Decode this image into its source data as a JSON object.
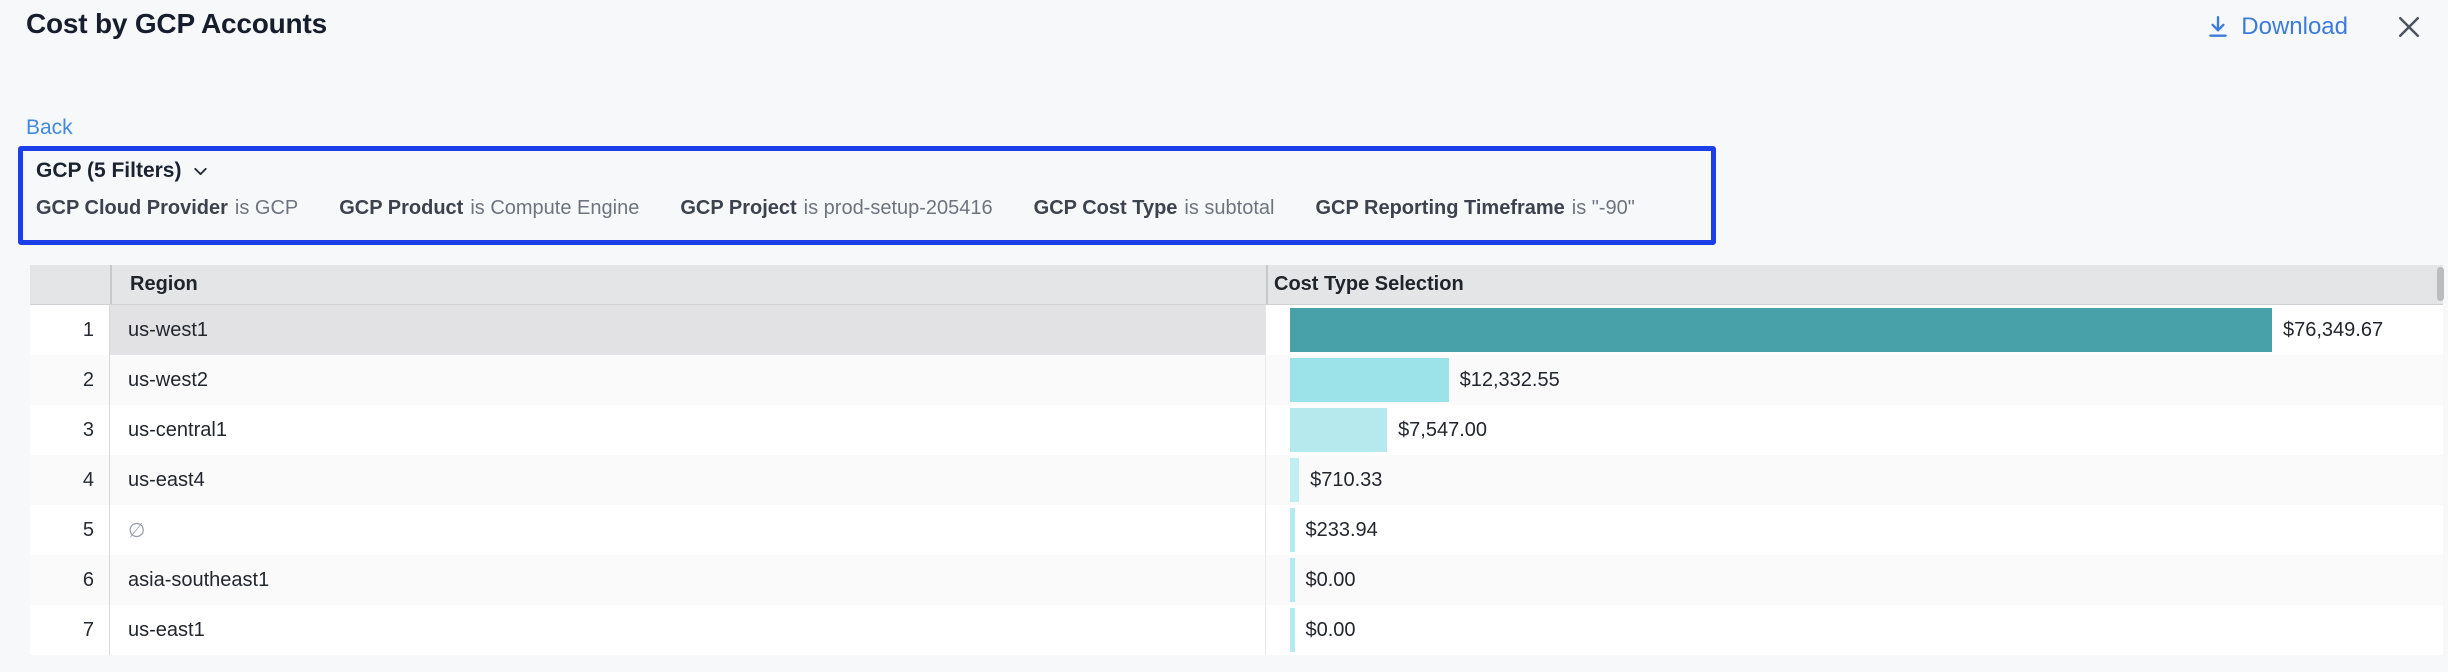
{
  "page": {
    "title": "Cost by GCP Accounts"
  },
  "header": {
    "download_label": "Download"
  },
  "nav": {
    "back_label": "Back"
  },
  "filter_panel": {
    "summary": "GCP (5 Filters)",
    "highlight_color": "#1d3fe8",
    "filters": [
      {
        "name": "GCP Cloud Provider",
        "condition": "is GCP"
      },
      {
        "name": "GCP Product",
        "condition": "is Compute Engine"
      },
      {
        "name": "GCP Project",
        "condition": "is prod-setup-205416"
      },
      {
        "name": "GCP Cost Type",
        "condition": "is subtotal"
      },
      {
        "name": "GCP Reporting Timeframe",
        "condition": "is \"-90\""
      }
    ]
  },
  "table": {
    "columns": {
      "region": "Region",
      "cost": "Cost Type Selection"
    },
    "rows": [
      {
        "index": "1",
        "region": "us-west1",
        "value": 76349.67,
        "label": "$76,349.67",
        "bar_color": "#48a1a9",
        "selected": true
      },
      {
        "index": "2",
        "region": "us-west2",
        "value": 12332.55,
        "label": "$12,332.55",
        "bar_color": "#9be2e9"
      },
      {
        "index": "3",
        "region": "us-central1",
        "value": 7547.0,
        "label": "$7,547.00",
        "bar_color": "#b5e9ee"
      },
      {
        "index": "4",
        "region": "us-east4",
        "value": 710.33,
        "label": "$710.33",
        "bar_color": "#c0eef2"
      },
      {
        "index": "5",
        "region": "∅",
        "region_null": true,
        "value": 233.94,
        "label": "$233.94",
        "bar_color": "#b4ebf3"
      },
      {
        "index": "6",
        "region": "asia-southeast1",
        "value": 0.0,
        "label": "$0.00",
        "bar_color": "#b4ebf3"
      },
      {
        "index": "7",
        "region": "us-east1",
        "value": 0.0,
        "label": "$0.00",
        "bar_color": "#b4ebf3"
      }
    ]
  },
  "chart_data": {
    "type": "bar",
    "orientation": "horizontal",
    "title": "Cost by GCP Accounts",
    "categories": [
      "us-west1",
      "us-west2",
      "us-central1",
      "us-east4",
      "∅",
      "asia-southeast1",
      "us-east1"
    ],
    "values": [
      76349.67,
      12332.55,
      7547.0,
      710.33,
      233.94,
      0.0,
      0.0
    ],
    "value_labels": [
      "$76,349.67",
      "$12,332.55",
      "$7,547.00",
      "$710.33",
      "$233.94",
      "$0.00",
      "$0.00"
    ],
    "xlabel": "Cost Type Selection",
    "ylabel": "Region",
    "xlim": [
      0,
      76349.67
    ],
    "grid": false,
    "legend": false,
    "bar_colors": [
      "#48a1a9",
      "#9be2e9",
      "#b5e9ee",
      "#c0eef2",
      "#b4ebf3",
      "#b4ebf3",
      "#b4ebf3"
    ]
  },
  "colors": {
    "accent_blue": "#3b7cdb",
    "highlight_border": "#1d3fe8",
    "max_bar_teal": "#48a1a9",
    "light_bar_cyan": "#b4ebf3",
    "header_gray": "#e4e5e7",
    "selected_cell_gray": "#e2e2e4"
  }
}
